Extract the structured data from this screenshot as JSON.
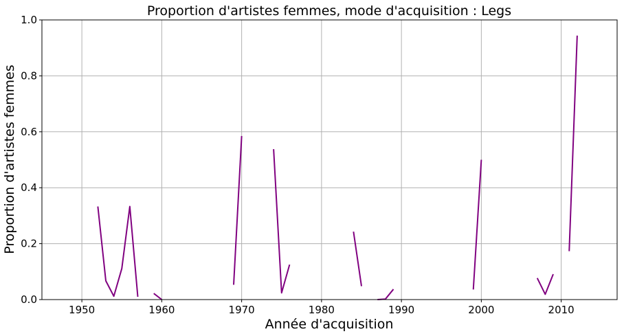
{
  "chart_data": {
    "type": "line",
    "title": "Proportion d'artistes femmes, mode d'acquisition : Legs",
    "xlabel": "Année d'acquisition",
    "ylabel": "Proportion d'artistes femmes",
    "xlim": [
      1945,
      2017
    ],
    "ylim": [
      0,
      1.0
    ],
    "xticks": [
      1950,
      1960,
      1970,
      1980,
      1990,
      2000,
      2010
    ],
    "yticks": [
      0.0,
      0.2,
      0.4,
      0.6,
      0.8,
      1.0
    ],
    "xtick_labels": [
      "1950",
      "1960",
      "1970",
      "1980",
      "1990",
      "2000",
      "2010"
    ],
    "ytick_labels": [
      "0.0",
      "0.2",
      "0.4",
      "0.6",
      "0.8",
      "1.0"
    ],
    "grid": true,
    "color": "#800080",
    "segments": [
      {
        "x": [
          1952,
          1953,
          1954,
          1955,
          1956,
          1957
        ],
        "y": [
          0.333,
          0.067,
          0.012,
          0.111,
          0.333,
          0.01
        ]
      },
      {
        "x": [
          1959,
          1960
        ],
        "y": [
          0.022,
          0.0
        ]
      },
      {
        "x": [
          1969,
          1970
        ],
        "y": [
          0.053,
          0.585
        ]
      },
      {
        "x": [
          1974,
          1975,
          1976
        ],
        "y": [
          0.538,
          0.024,
          0.125
        ]
      },
      {
        "x": [
          1984,
          1985
        ],
        "y": [
          0.243,
          0.048
        ]
      },
      {
        "x": [
          1987,
          1988,
          1989
        ],
        "y": [
          0.0,
          0.002,
          0.037
        ]
      },
      {
        "x": [
          1999,
          2000
        ],
        "y": [
          0.036,
          0.5
        ]
      },
      {
        "x": [
          2007,
          2008,
          2009
        ],
        "y": [
          0.077,
          0.019,
          0.091
        ]
      },
      {
        "x": [
          2011,
          2012
        ],
        "y": [
          0.173,
          0.944
        ]
      }
    ]
  }
}
